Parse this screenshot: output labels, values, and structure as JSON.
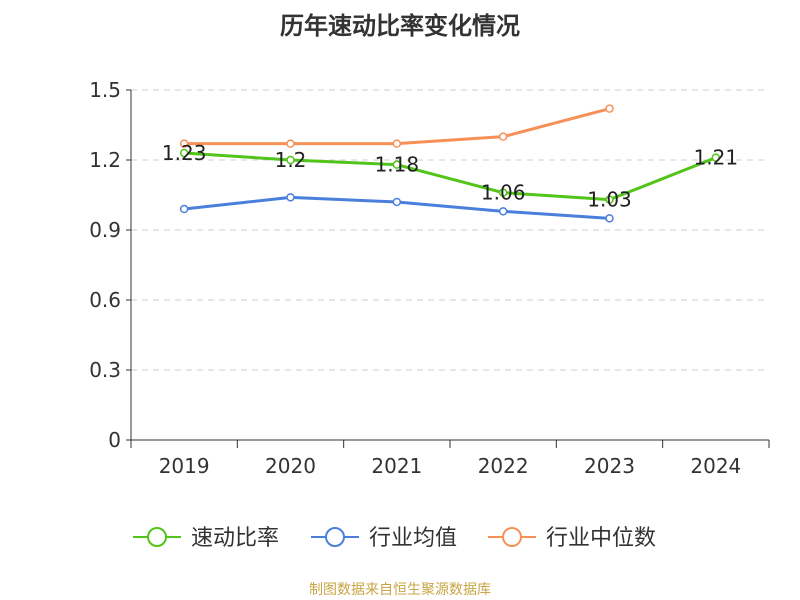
{
  "chart_data": {
    "type": "line",
    "title": "历年速动比率变化情况",
    "categories": [
      "2019",
      "2020",
      "2021",
      "2022",
      "2023",
      "2024"
    ],
    "ylim": [
      0,
      1.5
    ],
    "yticks": [
      "0",
      "0.3",
      "0.6",
      "0.9",
      "1.2",
      "1.5"
    ],
    "grid": true,
    "legend_position": "bottom",
    "series": [
      {
        "name": "速动比率",
        "color": "#52c41a",
        "values": [
          1.23,
          1.2,
          1.18,
          1.06,
          1.03,
          1.21
        ],
        "labels": [
          "1.23",
          "1.2",
          "1.18",
          "1.06",
          "1.03",
          "1.21"
        ],
        "show_labels": true
      },
      {
        "name": "行业均值",
        "color": "#4a7fdc",
        "values": [
          0.99,
          1.04,
          1.02,
          0.98,
          0.95,
          null
        ],
        "show_labels": false
      },
      {
        "name": "行业中位数",
        "color": "#f79057",
        "values": [
          1.27,
          1.27,
          1.27,
          1.3,
          1.42,
          null
        ],
        "show_labels": false
      }
    ]
  },
  "source": {
    "text": "制图数据来自恒生聚源数据库",
    "color": "#c8a646"
  }
}
